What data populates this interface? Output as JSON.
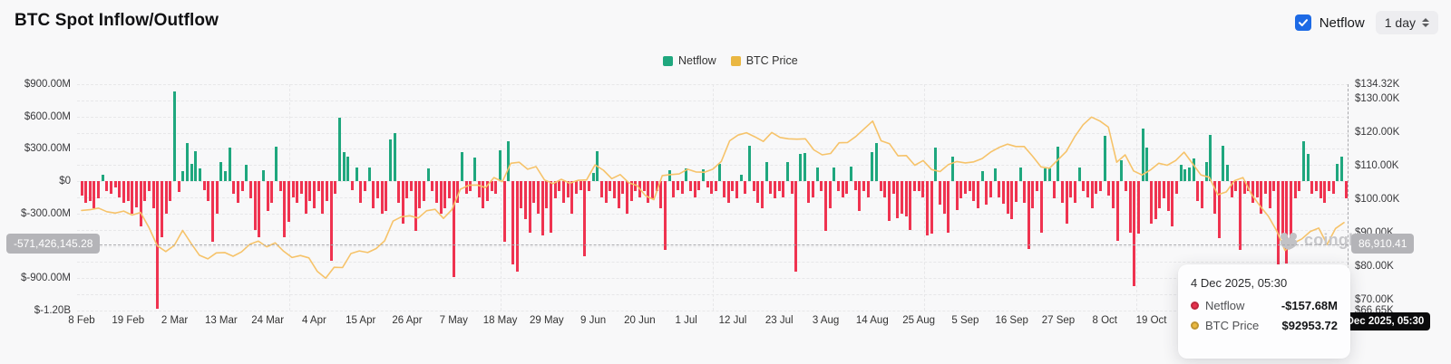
{
  "header": {
    "title": "BTC Spot Inflow/Outflow",
    "netflow_toggle_label": "Netflow",
    "interval_value": "1 day"
  },
  "legend": [
    {
      "label": "Netflow",
      "color": "#1fa77e"
    },
    {
      "label": "BTC Price",
      "color": "#eab742"
    }
  ],
  "watermark": "coinglass",
  "crosshair": {
    "left_value_badge": "-571,426,145.28",
    "right_value_badge": "86,910.41",
    "date_badge": "4 Dec 2025, 05:30"
  },
  "tooltip": {
    "date": "4 Dec 2025, 05:30",
    "rows": [
      {
        "label": "Netflow",
        "value": "-$157.68M",
        "dot_color": "#e7314d"
      },
      {
        "label": "BTC Price",
        "value": "$92953.72",
        "dot_color": "#e9b840"
      }
    ]
  },
  "chart_data": {
    "type": "bar+line",
    "title": "BTC Spot Inflow/Outflow",
    "grid": "dashed",
    "legend_position": "top-center",
    "left_axis": {
      "unit": "USD",
      "labels": [
        "$900.00M",
        "$600.00M",
        "$300.00M",
        "$0",
        "$-300.00M",
        "$-600.00M",
        "$-900.00M",
        "$-1.20B"
      ],
      "values_m": [
        900,
        600,
        300,
        0,
        -300,
        -600,
        -900,
        -1200
      ],
      "min_m": -1200,
      "max_m": 900
    },
    "right_axis": {
      "unit": "USD",
      "labels": [
        "$134.32K",
        "$130.00K",
        "$120.00K",
        "$110.00K",
        "$100.00K",
        "$90.00K",
        "$80.00K",
        "$70.00K",
        "$66.65K"
      ],
      "values_k": [
        134.32,
        130,
        120,
        110,
        100,
        90,
        80,
        70,
        66.65
      ],
      "min_k": 66.65,
      "max_k": 134.32
    },
    "x_ticks": [
      "8 Feb",
      "19 Feb",
      "2 Mar",
      "13 Mar",
      "24 Mar",
      "4 Apr",
      "15 Apr",
      "26 Apr",
      "7 May",
      "18 May",
      "29 May",
      "9 Jun",
      "20 Jun",
      "1 Jul",
      "12 Jul",
      "23 Jul",
      "3 Aug",
      "14 Aug",
      "25 Aug",
      "5 Sep",
      "16 Sep",
      "27 Sep",
      "8 Oct",
      "19 Oct"
    ],
    "date_range": {
      "start": "8 Feb 2025",
      "end": "4 Dec 2025",
      "interval": "1 day"
    },
    "series": [
      {
        "name": "Netflow",
        "type": "bar",
        "unit": "$M",
        "color_positive": "#1fa77e",
        "color_negative": "#ef3350",
        "values": [
          -130,
          -200,
          -180,
          -250,
          -160,
          60,
          -90,
          -120,
          -60,
          -150,
          -200,
          -180,
          -300,
          -240,
          -420,
          -180,
          -90,
          -250,
          -1180,
          -520,
          -300,
          -180,
          830,
          -100,
          90,
          350,
          160,
          280,
          120,
          -80,
          -180,
          -560,
          -300,
          180,
          90,
          310,
          -120,
          -200,
          -90,
          150,
          -160,
          -450,
          -520,
          100,
          -280,
          -200,
          320,
          -90,
          -520,
          -380,
          -150,
          -200,
          -120,
          -300,
          -180,
          -250,
          -90,
          -300,
          -180,
          -740,
          -120,
          590,
          270,
          230,
          -80,
          130,
          -200,
          -90,
          130,
          -250,
          -160,
          -300,
          -280,
          390,
          450,
          -200,
          -390,
          -160,
          -90,
          -460,
          -250,
          -180,
          120,
          -90,
          -200,
          -300,
          -250,
          -160,
          -890,
          -200,
          270,
          -120,
          -90,
          220,
          -150,
          -250,
          -180,
          -90,
          -120,
          290,
          -560,
          370,
          -770,
          -840,
          -250,
          -350,
          -480,
          -200,
          -300,
          -500,
          -250,
          -480,
          -160,
          -90,
          -200,
          -150,
          -300,
          -120,
          -80,
          -700,
          -90,
          80,
          280,
          -150,
          -200,
          -90,
          -160,
          -250,
          -120,
          -300,
          -180,
          -90,
          -150,
          -90,
          -200,
          -160,
          -90,
          -250,
          -640,
          100,
          -150,
          -80,
          -120,
          120,
          -90,
          -150,
          -80,
          110,
          -60,
          -120,
          -90,
          160,
          -150,
          -200,
          -90,
          -160,
          60,
          -120,
          330,
          -90,
          -200,
          -250,
          180,
          -120,
          -160,
          -90,
          -150,
          180,
          -120,
          -840,
          250,
          260,
          -200,
          -150,
          130,
          -90,
          -460,
          -250,
          130,
          -90,
          -150,
          -120,
          135,
          -80,
          -280,
          -90,
          -150,
          270,
          350,
          -90,
          -150,
          -370,
          -120,
          -340,
          -300,
          -330,
          -450,
          -90,
          -90,
          -150,
          -500,
          -490,
          310,
          -220,
          -300,
          -480,
          230,
          -270,
          -160,
          -120,
          -90,
          -180,
          -250,
          90,
          -220,
          -150,
          120,
          -150,
          -210,
          -300,
          -350,
          -190,
          130,
          -200,
          -630,
          -250,
          -90,
          -480,
          115,
          120,
          -160,
          320,
          -200,
          -390,
          -150,
          -200,
          130,
          -90,
          -150,
          -250,
          -120,
          -90,
          420,
          -130,
          -250,
          -550,
          195,
          -90,
          -480,
          -970,
          -490,
          490,
          310,
          -390,
          -350,
          -250,
          -160,
          -280,
          -420,
          -120,
          150,
          110,
          130,
          210,
          -180,
          -250,
          180,
          430,
          -300,
          -530,
          330,
          150,
          -150,
          -90,
          -640,
          -120,
          -90,
          -200,
          -150,
          -300,
          -120,
          -250,
          -90,
          -790,
          -540,
          -760,
          -590,
          -160,
          -90,
          370,
          250,
          -120,
          -90,
          -160,
          -200,
          -90,
          -120,
          160,
          230,
          -157.68
        ]
      },
      {
        "name": "BTC Price",
        "type": "line",
        "unit": "$K",
        "color": "#f6c36a",
        "values": [
          96.6,
          96.8,
          97.3,
          96.2,
          95.8,
          96.4,
          95.2,
          96.0,
          91.5,
          86.0,
          84.3,
          86.1,
          90.6,
          86.8,
          83.2,
          82.1,
          83.9,
          84.0,
          82.9,
          84.2,
          86.5,
          87.4,
          85.7,
          86.9,
          84.4,
          82.5,
          83.1,
          82.4,
          78.4,
          76.3,
          79.6,
          79.5,
          83.7,
          84.5,
          84.0,
          85.2,
          87.5,
          93.4,
          94.7,
          95.0,
          94.3,
          96.5,
          96.9,
          94.2,
          96.8,
          102.9,
          104.1,
          104.2,
          103.4,
          106.4,
          105.2,
          110.7,
          111.0,
          108.9,
          109.7,
          105.7,
          104.6,
          105.9,
          104.7,
          105.6,
          105.7,
          110.2,
          108.6,
          106.1,
          107.3,
          104.9,
          104.0,
          101.0,
          99.8,
          107.0,
          107.3,
          107.5,
          108.9,
          108.1,
          108.0,
          108.9,
          111.2,
          117.4,
          119.1,
          119.8,
          118.6,
          117.2,
          119.9,
          118.4,
          118.0,
          117.9,
          118.0,
          114.7,
          113.2,
          113.6,
          116.8,
          116.9,
          118.7,
          121.0,
          123.3,
          117.4,
          116.5,
          112.9,
          113.0,
          110.1,
          111.5,
          108.8,
          108.2,
          110.3,
          111.2,
          110.8,
          111.1,
          112.1,
          114.0,
          115.4,
          116.4,
          115.7,
          115.7,
          112.8,
          109.6,
          109.2,
          111.7,
          114.2,
          118.6,
          122.2,
          124.5,
          123.3,
          121.5,
          111.0,
          113.2,
          108.4,
          107.2,
          108.7,
          110.7,
          110.1,
          111.5,
          114.0,
          110.6,
          107.2,
          106.5,
          101.3,
          102.1,
          105.5,
          106.4,
          101.5,
          98.0,
          94.9,
          90.5,
          84.6,
          86.8,
          88.1,
          90.3,
          91.3,
          86.4,
          91.2,
          92.95
        ]
      }
    ]
  }
}
